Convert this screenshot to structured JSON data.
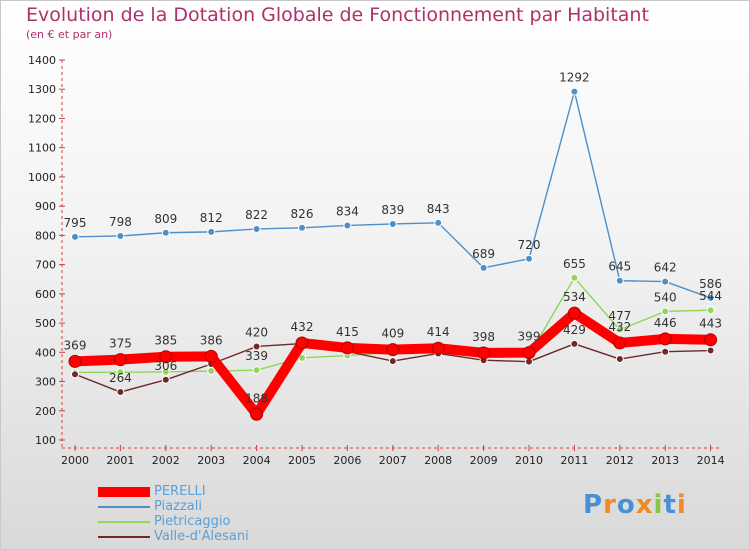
{
  "chart_data": {
    "type": "line",
    "title": "Evolution de la Dotation Globale de Fonctionnement par Habitant",
    "subtitle": "(en € et par an)",
    "xlabel": "",
    "ylabel": "",
    "ylim": [
      100,
      1400
    ],
    "y_ticks": [
      100,
      200,
      300,
      400,
      500,
      600,
      700,
      800,
      900,
      1000,
      1100,
      1200,
      1300,
      1400
    ],
    "categories": [
      "2000",
      "2001",
      "2002",
      "2003",
      "2004",
      "2005",
      "2006",
      "2007",
      "2008",
      "2009",
      "2010",
      "2011",
      "2012",
      "2013",
      "2014"
    ],
    "grid": false,
    "legend_position": "bottom-left",
    "series": [
      {
        "name": "PERELLI",
        "color": "#ff0000",
        "values": [
          369,
          375,
          385,
          386,
          188,
          432,
          415,
          409,
          414,
          398,
          399,
          534,
          432,
          446,
          443
        ],
        "labels": [
          "369",
          "375",
          "385",
          "386",
          "188",
          "432",
          "415",
          "409",
          "414",
          "398",
          "399",
          "534",
          "432",
          "446",
          "443"
        ]
      },
      {
        "name": "Piazzali",
        "color": "#4e8fc7",
        "values": [
          795,
          798,
          809,
          812,
          822,
          826,
          834,
          839,
          843,
          689,
          720,
          1292,
          645,
          642,
          586
        ],
        "labels": [
          "795",
          "798",
          "809",
          "812",
          "822",
          "826",
          "834",
          "839",
          "843",
          "689",
          "720",
          "1292",
          "645",
          "642",
          "586"
        ]
      },
      {
        "name": "Pietricaggio",
        "color": "#8fd65b",
        "values": [
          331,
          332,
          333,
          336,
          339,
          381,
          389,
          400,
          407,
          410,
          390,
          655,
          477,
          540,
          544
        ],
        "labels": [
          "",
          "",
          "",
          "",
          "339",
          "",
          "",
          "",
          "",
          "",
          "",
          "655",
          "477",
          "540",
          "544"
        ]
      },
      {
        "name": "Valle-d'Alesani",
        "color": "#702828",
        "values": [
          325,
          264,
          306,
          360,
          420,
          430,
          403,
          370,
          396,
          373,
          368,
          429,
          377,
          402,
          406
        ],
        "labels": [
          "",
          "264",
          "306",
          "",
          "420",
          "",
          "",
          "",
          "",
          "",
          "",
          "429",
          "",
          "",
          ""
        ]
      }
    ]
  },
  "logo": {
    "letters": [
      "P",
      "r",
      "o",
      "x",
      "i",
      "t",
      "i"
    ],
    "colors": [
      "#4a8fd4",
      "#f08a24",
      "#4a8fd4",
      "#f08a24",
      "#8cc63f",
      "#4a8fd4",
      "#f08a24"
    ]
  }
}
